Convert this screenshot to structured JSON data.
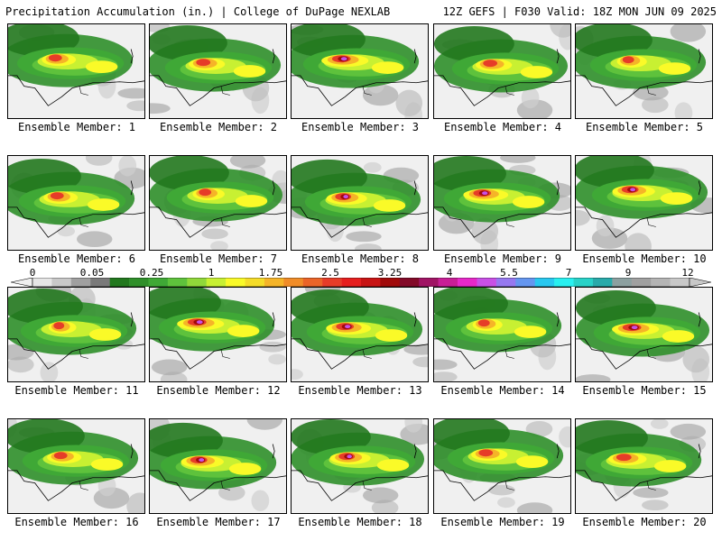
{
  "header": {
    "left_title": "Precipitation Accumulation (in.) | College of DuPage NEXLAB",
    "right_title": "12Z GEFS | F030 Valid: 18Z MON JUN 09 2025"
  },
  "colorbar": {
    "labels": [
      "0",
      "0.05",
      "0.25",
      "1",
      "1.75",
      "2.5",
      "3.25",
      "4",
      "5.5",
      "7",
      "9",
      "12"
    ],
    "colors": [
      "#e6e6e6",
      "#c8c8c8",
      "#a0a0a0",
      "#7a7a7a",
      "#22781e",
      "#2f8f2a",
      "#3fa836",
      "#5ec23c",
      "#90d83a",
      "#c8f032",
      "#fafa28",
      "#f5dc28",
      "#f5b428",
      "#f08c28",
      "#eb6428",
      "#e63c28",
      "#e61e1e",
      "#c81414",
      "#a00a0a",
      "#820a28",
      "#a01464",
      "#c81e96",
      "#e628c8",
      "#c850e6",
      "#9678f0",
      "#6496f0",
      "#28c8f0",
      "#28f0f0",
      "#28d2c8",
      "#28aaaa",
      "#8ca0a0",
      "#a0a0a0",
      "#b4b4b4",
      "#c8c8c8"
    ]
  },
  "members": [
    {
      "label": "Ensemble Member: 1",
      "intensity": 0.55
    },
    {
      "label": "Ensemble Member: 2",
      "intensity": 0.6
    },
    {
      "label": "Ensemble Member: 3",
      "intensity": 0.85
    },
    {
      "label": "Ensemble Member: 4",
      "intensity": 0.6
    },
    {
      "label": "Ensemble Member: 5",
      "intensity": 0.45
    },
    {
      "label": "Ensemble Member: 6",
      "intensity": 0.55
    },
    {
      "label": "Ensemble Member: 7",
      "intensity": 0.5
    },
    {
      "label": "Ensemble Member: 8",
      "intensity": 0.7
    },
    {
      "label": "Ensemble Member: 9",
      "intensity": 0.8
    },
    {
      "label": "Ensemble Member: 10",
      "intensity": 0.75
    },
    {
      "label": "Ensemble Member: 11",
      "intensity": 0.4
    },
    {
      "label": "Ensemble Member: 12",
      "intensity": 0.85
    },
    {
      "label": "Ensemble Member: 13",
      "intensity": 0.8
    },
    {
      "label": "Ensemble Member: 14",
      "intensity": 0.45
    },
    {
      "label": "Ensemble Member: 15",
      "intensity": 0.85
    },
    {
      "label": "Ensemble Member: 16",
      "intensity": 0.55
    },
    {
      "label": "Ensemble Member: 17",
      "intensity": 0.75
    },
    {
      "label": "Ensemble Member: 18",
      "intensity": 0.7
    },
    {
      "label": "Ensemble Member: 19",
      "intensity": 0.6
    },
    {
      "label": "Ensemble Member: 20",
      "intensity": 0.65
    }
  ]
}
